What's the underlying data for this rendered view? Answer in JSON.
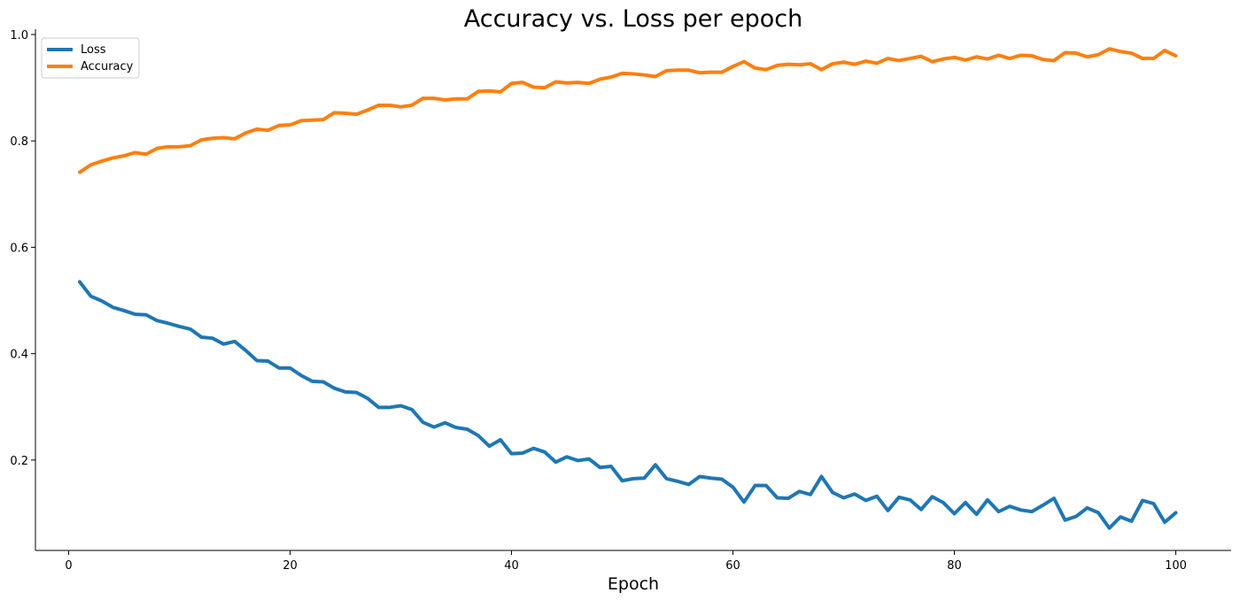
{
  "chart_data": {
    "type": "line",
    "title": "Accuracy vs. Loss per epoch",
    "xlabel": "Epoch",
    "ylabel": "",
    "xlim": [
      -3,
      105
    ],
    "ylim": [
      0.03,
      1.01
    ],
    "xticks": [
      0,
      20,
      40,
      60,
      80,
      100
    ],
    "yticks": [
      0.2,
      0.4,
      0.6,
      0.8,
      1.0
    ],
    "xtick_labels": [
      "0",
      "20",
      "40",
      "60",
      "80",
      "100"
    ],
    "ytick_labels": [
      "0.2",
      "0.4",
      "0.6",
      "0.8",
      "1.0"
    ],
    "grid": false,
    "legend_position": "top-left",
    "x": [
      1,
      2,
      3,
      4,
      5,
      6,
      7,
      8,
      9,
      10,
      11,
      12,
      13,
      14,
      15,
      16,
      17,
      18,
      19,
      20,
      21,
      22,
      23,
      24,
      25,
      26,
      27,
      28,
      29,
      30,
      31,
      32,
      33,
      34,
      35,
      36,
      37,
      38,
      39,
      40,
      41,
      42,
      43,
      44,
      45,
      46,
      47,
      48,
      49,
      50,
      51,
      52,
      53,
      54,
      55,
      56,
      57,
      58,
      59,
      60,
      61,
      62,
      63,
      64,
      65,
      66,
      67,
      68,
      69,
      70,
      71,
      72,
      73,
      74,
      75,
      76,
      77,
      78,
      79,
      80,
      81,
      82,
      83,
      84,
      85,
      86,
      87,
      88,
      89,
      90,
      91,
      92,
      93,
      94,
      95,
      96,
      97,
      98,
      99,
      100
    ],
    "series": [
      {
        "name": "Loss",
        "color": "#1f77b4",
        "values": [
          0.535,
          0.508,
          0.499,
          0.487,
          0.481,
          0.474,
          0.473,
          0.462,
          0.457,
          0.451,
          0.446,
          0.431,
          0.429,
          0.418,
          0.423,
          0.406,
          0.387,
          0.386,
          0.373,
          0.373,
          0.359,
          0.348,
          0.347,
          0.335,
          0.328,
          0.327,
          0.316,
          0.299,
          0.299,
          0.302,
          0.295,
          0.271,
          0.262,
          0.27,
          0.261,
          0.258,
          0.246,
          0.226,
          0.238,
          0.212,
          0.213,
          0.222,
          0.215,
          0.196,
          0.206,
          0.199,
          0.202,
          0.186,
          0.188,
          0.161,
          0.165,
          0.166,
          0.191,
          0.165,
          0.16,
          0.154,
          0.169,
          0.166,
          0.164,
          0.149,
          0.121,
          0.152,
          0.152,
          0.129,
          0.128,
          0.141,
          0.135,
          0.169,
          0.139,
          0.129,
          0.136,
          0.124,
          0.132,
          0.105,
          0.13,
          0.125,
          0.107,
          0.131,
          0.12,
          0.099,
          0.12,
          0.098,
          0.125,
          0.103,
          0.113,
          0.106,
          0.103,
          0.115,
          0.128,
          0.087,
          0.094,
          0.11,
          0.101,
          0.072,
          0.093,
          0.085,
          0.124,
          0.118,
          0.083,
          0.101
        ]
      },
      {
        "name": "Accuracy",
        "color": "#ff7f0e",
        "values": [
          0.741,
          0.755,
          0.762,
          0.768,
          0.772,
          0.778,
          0.775,
          0.786,
          0.789,
          0.789,
          0.791,
          0.802,
          0.805,
          0.806,
          0.804,
          0.815,
          0.822,
          0.82,
          0.829,
          0.83,
          0.838,
          0.839,
          0.84,
          0.853,
          0.852,
          0.85,
          0.858,
          0.867,
          0.867,
          0.864,
          0.867,
          0.88,
          0.88,
          0.877,
          0.879,
          0.879,
          0.893,
          0.894,
          0.892,
          0.908,
          0.91,
          0.901,
          0.9,
          0.911,
          0.909,
          0.91,
          0.908,
          0.916,
          0.92,
          0.927,
          0.926,
          0.924,
          0.921,
          0.932,
          0.933,
          0.933,
          0.928,
          0.929,
          0.929,
          0.94,
          0.949,
          0.937,
          0.934,
          0.942,
          0.944,
          0.943,
          0.945,
          0.934,
          0.945,
          0.948,
          0.944,
          0.95,
          0.946,
          0.955,
          0.951,
          0.955,
          0.959,
          0.949,
          0.954,
          0.957,
          0.952,
          0.958,
          0.954,
          0.961,
          0.955,
          0.961,
          0.96,
          0.953,
          0.951,
          0.966,
          0.965,
          0.958,
          0.962,
          0.973,
          0.968,
          0.965,
          0.955,
          0.955,
          0.97,
          0.96
        ]
      }
    ]
  }
}
